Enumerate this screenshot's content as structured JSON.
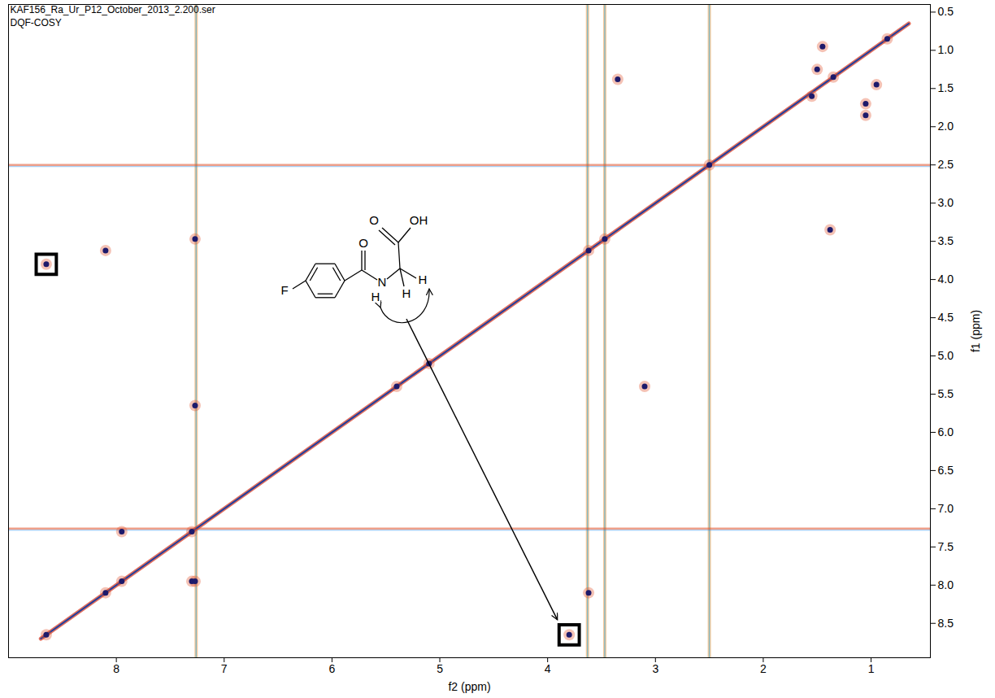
{
  "chart_data": {
    "type": "scatter",
    "title": "KAF156_Ra_Ur_P12_October_2013_2.200.ser",
    "subtitle": "DQF-COSY",
    "x_label": "f2 (ppm)",
    "y_label": "f1 (ppm)",
    "xlim": [
      9.0,
      0.45
    ],
    "ylim": [
      0.4,
      8.95
    ],
    "xticks": [
      8,
      7,
      6,
      5,
      4,
      3,
      2,
      1
    ],
    "yticks": [
      0.5,
      {
        "value": 1.0,
        "label": "1.0"
      },
      1.5,
      {
        "value": 2.0,
        "label": "2.0"
      },
      2.5,
      {
        "value": 3.0,
        "label": "3.0"
      },
      3.5,
      {
        "value": 4.0,
        "label": "4.0"
      },
      4.5,
      {
        "value": 5.0,
        "label": "5.0"
      },
      5.5,
      {
        "value": 6.0,
        "label": "6.0"
      },
      6.5,
      {
        "value": 7.0,
        "label": "7.0"
      },
      7.5,
      {
        "value": 8.0,
        "label": "8.0"
      },
      8.5
    ],
    "grid": false,
    "color": "#1d1a6b",
    "peaks": {
      "f2": [
        8.65,
        8.1,
        7.95,
        7.3,
        5.4,
        5.1,
        3.62,
        3.47,
        2.5,
        1.35,
        0.85,
        8.1,
        3.62,
        7.95,
        7.3,
        7.27,
        7.27,
        7.27,
        3.35,
        1.38,
        1.55,
        1.5,
        1.05,
        1.05,
        0.95,
        1.45,
        3.1,
        8.65,
        3.8
      ],
      "f1": [
        8.65,
        8.1,
        7.95,
        7.3,
        5.4,
        5.1,
        3.62,
        3.47,
        2.5,
        1.35,
        0.85,
        3.62,
        8.1,
        7.3,
        7.95,
        3.47,
        5.65,
        7.95,
        1.38,
        3.35,
        1.6,
        1.25,
        1.7,
        1.85,
        1.45,
        0.95,
        5.4,
        3.8,
        8.65
      ]
    },
    "diagonal": [
      8.7,
      0.65
    ],
    "t1_noise": {
      "f2": [
        7.26,
        3.63,
        3.47,
        2.5
      ],
      "f1": [
        2.5,
        7.26
      ]
    },
    "highlighted_peaks": {
      "f2": [
        8.65,
        3.8
      ],
      "f1": [
        3.8,
        8.65
      ]
    },
    "structure": {
      "amide_O": "O",
      "acid_O": "O",
      "acid_OH": "OH",
      "N": "N",
      "NH": "H",
      "CH2": [
        "H",
        "H"
      ],
      "F": "F"
    }
  }
}
